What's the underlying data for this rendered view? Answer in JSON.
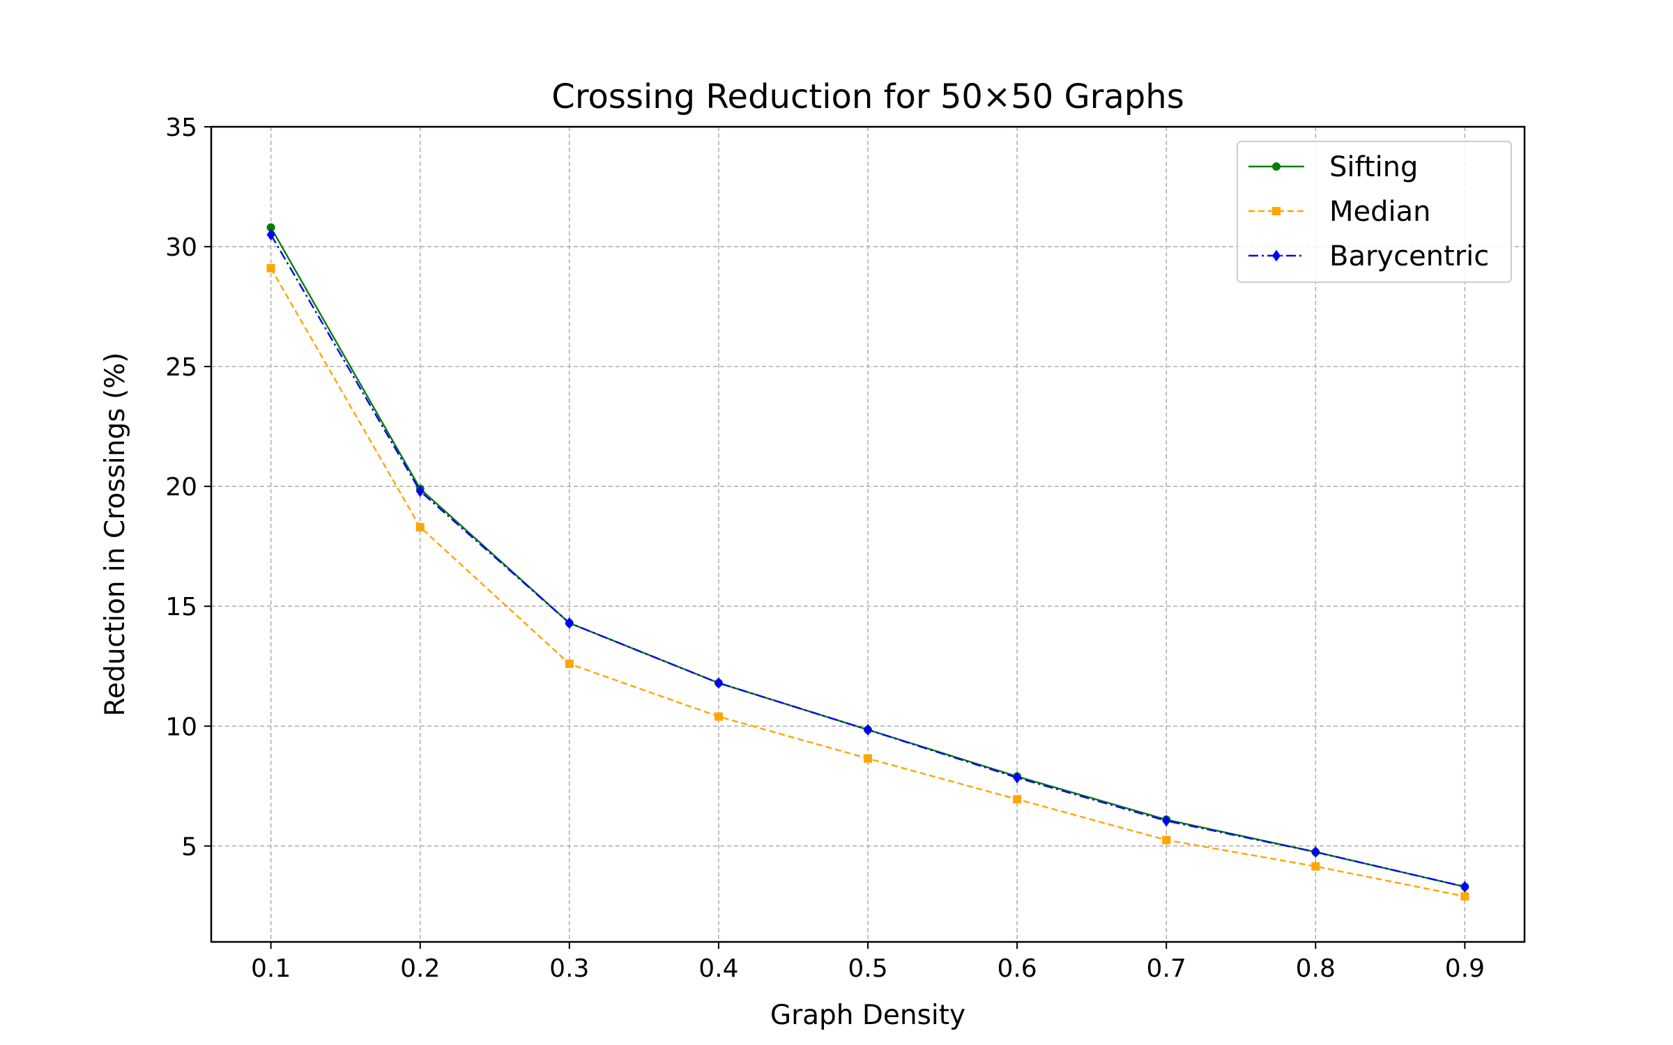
{
  "chart_data": {
    "type": "line",
    "title": "Crossing Reduction for 50×50 Graphs",
    "xlabel": "Graph Density",
    "ylabel": "Reduction in Crossings (%)",
    "x": [
      0.1,
      0.2,
      0.3,
      0.4,
      0.5,
      0.6,
      0.7,
      0.8,
      0.9
    ],
    "xticks": [
      "0.1",
      "0.2",
      "0.3",
      "0.4",
      "0.5",
      "0.6",
      "0.7",
      "0.8",
      "0.9"
    ],
    "yticks": [
      "5",
      "10",
      "15",
      "20",
      "25",
      "30",
      "35"
    ],
    "xlim": [
      0.06,
      0.94
    ],
    "ylim": [
      1,
      35
    ],
    "grid": true,
    "legend_position": "top-right",
    "series": [
      {
        "name": "Sifting",
        "color": "#008000",
        "dash": "solid",
        "marker": "circle",
        "values": [
          30.8,
          19.9,
          14.3,
          11.8,
          9.85,
          7.9,
          6.1,
          4.75,
          3.3
        ]
      },
      {
        "name": "Median",
        "color": "#FFA500",
        "dash": "dashed",
        "marker": "square",
        "values": [
          29.1,
          18.3,
          12.6,
          10.4,
          8.65,
          6.95,
          5.25,
          4.15,
          2.9
        ]
      },
      {
        "name": "Barycentric",
        "color": "#0000FF",
        "dash": "dashdot",
        "marker": "diamond",
        "values": [
          30.5,
          19.8,
          14.3,
          11.8,
          9.85,
          7.85,
          6.05,
          4.75,
          3.3
        ]
      }
    ]
  }
}
